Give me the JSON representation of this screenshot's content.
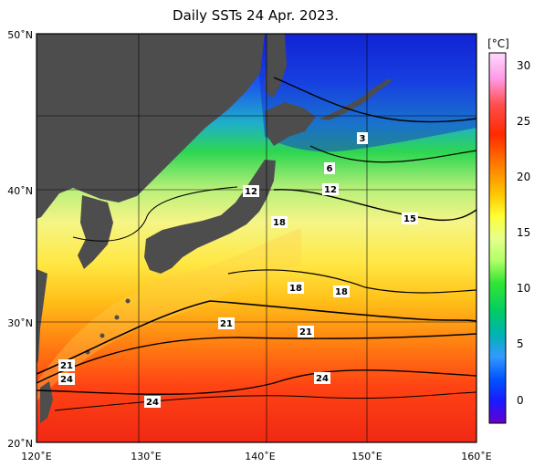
{
  "title": "Daily SSTs 24 Apr. 2023.",
  "colorbar": {
    "unit": "[°C]",
    "ticks": [
      "30",
      "25",
      "20",
      "15",
      "10",
      "5",
      "0"
    ],
    "colors": [
      "#ffd9ff",
      "#ff99e6",
      "#ff4d4d",
      "#ff2a00",
      "#ff7a00",
      "#ffc400",
      "#ffff33",
      "#e6ff8c",
      "#b3ff66",
      "#33e633",
      "#00cc66",
      "#00b3b3",
      "#3399ff",
      "#0055ff",
      "#1a1aff",
      "#6600cc"
    ]
  },
  "axes": {
    "lat_labels": [
      "50˚N",
      "40˚N",
      "30˚N",
      "20˚N"
    ],
    "lon_labels": [
      "120˚E",
      "130˚E",
      "140˚E",
      "150˚E",
      "160˚E"
    ]
  },
  "isotherm_labels": [
    "3",
    "6",
    "12",
    "12",
    "15",
    "18",
    "18",
    "18",
    "21",
    "21",
    "21",
    "24",
    "24",
    "24"
  ],
  "colors": {
    "land": "#4d4d4d",
    "grid": "#000000"
  }
}
